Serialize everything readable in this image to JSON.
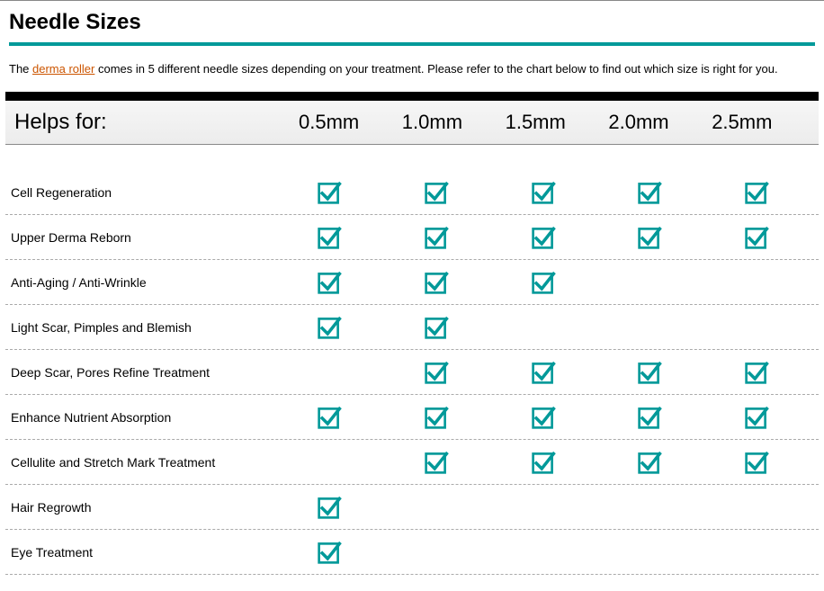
{
  "title": "Needle Sizes",
  "intro_prefix": "The ",
  "intro_link_text": "derma roller",
  "intro_suffix": " comes in 5 different needle sizes depending on your treatment. Please refer to the chart below to find out which size is right for you.",
  "header_label": "Helps for:",
  "columns": [
    "0.5mm",
    "1.0mm",
    "1.5mm",
    "2.0mm",
    "2.5mm"
  ],
  "rows": [
    {
      "label": "Cell Regeneration",
      "checks": [
        true,
        true,
        true,
        true,
        true
      ]
    },
    {
      "label": "Upper Derma Reborn",
      "checks": [
        true,
        true,
        true,
        true,
        true
      ]
    },
    {
      "label": "Anti-Aging / Anti-Wrinkle",
      "checks": [
        true,
        true,
        true,
        false,
        false
      ]
    },
    {
      "label": "Light Scar, Pimples and Blemish",
      "checks": [
        true,
        true,
        false,
        false,
        false
      ]
    },
    {
      "label": "Deep Scar, Pores Refine Treatment",
      "checks": [
        false,
        true,
        true,
        true,
        true
      ]
    },
    {
      "label": "Enhance Nutrient Absorption",
      "checks": [
        true,
        true,
        true,
        true,
        true
      ]
    },
    {
      "label": "Cellulite and Stretch Mark Treatment",
      "checks": [
        false,
        true,
        true,
        true,
        true
      ]
    },
    {
      "label": "Hair Regrowth",
      "checks": [
        true,
        false,
        false,
        false,
        false
      ]
    },
    {
      "label": "Eye Treatment",
      "checks": [
        true,
        false,
        false,
        false,
        false
      ]
    }
  ],
  "colors": {
    "teal": "#009999",
    "link": "#cc5500",
    "black": "#000000",
    "rule": "#888888",
    "dash": "#aaaaaa",
    "bg": "#ffffff"
  },
  "check_icon": {
    "box_stroke": "#009999",
    "tick_stroke": "#009999",
    "stroke_width": 3
  }
}
